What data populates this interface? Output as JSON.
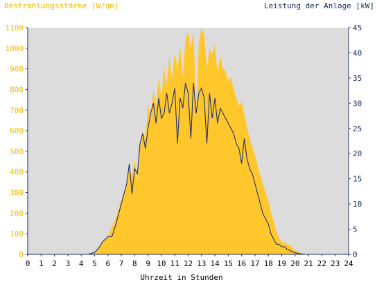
{
  "chart_data": {
    "type": "area",
    "left_title": "Bestrahlungsstärke [W/qm]",
    "right_title": "Leistung der Anlage [kW]",
    "xlabel": "Uhrzeit in Stunden",
    "x_ticks": [
      0,
      1,
      2,
      3,
      4,
      5,
      6,
      7,
      8,
      9,
      10,
      11,
      12,
      13,
      14,
      15,
      16,
      17,
      18,
      19,
      20,
      21,
      22,
      23,
      24
    ],
    "xlim": [
      0,
      24
    ],
    "y_left": {
      "ylim": [
        0,
        1100
      ],
      "ticks": [
        0,
        100,
        200,
        300,
        400,
        500,
        600,
        700,
        800,
        900,
        1000,
        1100
      ]
    },
    "y_right": {
      "ylim": [
        0,
        45
      ],
      "ticks": [
        0,
        5,
        10,
        15,
        20,
        25,
        30,
        35,
        40,
        45
      ]
    },
    "grid": false,
    "colors": {
      "irradiance": "#ffc72c",
      "power": "#1f2f6b",
      "plot_bg": "#dcdcdc",
      "left_axis_text": "#f5b800",
      "right_axis_text": "#1f2f6b",
      "axis_line": "#1f2f6b"
    },
    "series": [
      {
        "axis": "left",
        "x": [
          0,
          4.5,
          5,
          5.3,
          5.6,
          6,
          6.3,
          6.6,
          7,
          7.2,
          7.4,
          7.6,
          7.8,
          8,
          8.2,
          8.4,
          8.6,
          8.8,
          9,
          9.2,
          9.4,
          9.6,
          9.8,
          10,
          10.2,
          10.4,
          10.6,
          10.8,
          11,
          11.2,
          11.4,
          11.6,
          11.8,
          12,
          12.2,
          12.4,
          12.6,
          12.8,
          13,
          13.2,
          13.4,
          13.6,
          13.8,
          14,
          14.2,
          14.4,
          14.6,
          14.8,
          15,
          15.2,
          15.4,
          15.6,
          15.8,
          16,
          16.2,
          16.4,
          16.6,
          16.8,
          17,
          17.2,
          17.4,
          17.6,
          17.8,
          18,
          18.2,
          18.4,
          18.6,
          18.8,
          19,
          19.2,
          19.4,
          19.6,
          19.8,
          20,
          20.4,
          20.8,
          24
        ],
        "values": [
          0,
          0,
          10,
          30,
          60,
          90,
          130,
          180,
          260,
          300,
          340,
          420,
          380,
          460,
          350,
          520,
          600,
          560,
          730,
          650,
          800,
          720,
          860,
          760,
          900,
          820,
          960,
          850,
          980,
          900,
          1010,
          860,
          1040,
          1080,
          1000,
          1080,
          700,
          1020,
          1100,
          1060,
          900,
          1000,
          970,
          1020,
          880,
          960,
          900,
          890,
          840,
          860,
          800,
          760,
          720,
          740,
          680,
          620,
          560,
          520,
          480,
          430,
          380,
          340,
          300,
          260,
          200,
          160,
          110,
          80,
          60,
          55,
          50,
          45,
          30,
          20,
          8,
          0,
          0
        ]
      },
      {
        "axis": "right",
        "x": [
          0,
          4.5,
          5,
          5.3,
          5.6,
          6,
          6.3,
          6.6,
          7,
          7.2,
          7.4,
          7.6,
          7.8,
          8,
          8.2,
          8.4,
          8.6,
          8.8,
          9,
          9.2,
          9.4,
          9.6,
          9.8,
          10,
          10.2,
          10.4,
          10.6,
          10.8,
          11,
          11.2,
          11.4,
          11.6,
          11.8,
          12,
          12.2,
          12.4,
          12.6,
          12.8,
          13,
          13.2,
          13.4,
          13.6,
          13.8,
          14,
          14.2,
          14.4,
          14.6,
          14.8,
          15,
          15.2,
          15.4,
          15.6,
          15.8,
          16,
          16.2,
          16.4,
          16.6,
          16.8,
          17,
          17.2,
          17.4,
          17.6,
          17.8,
          18,
          18.2,
          18.4,
          18.6,
          18.8,
          19,
          19.2,
          19.4,
          19.6,
          19.8,
          20,
          20.4,
          20.8,
          24
        ],
        "values": [
          0,
          0,
          0.4,
          1.2,
          2.5,
          3.5,
          3.5,
          6,
          10,
          12,
          14,
          18,
          12,
          17,
          16,
          22,
          24,
          21,
          25,
          28,
          30,
          26,
          31,
          27,
          28,
          32,
          28,
          30,
          33,
          22,
          31,
          29,
          34,
          32,
          23,
          34,
          28,
          32,
          33,
          31,
          22,
          32,
          27,
          31,
          26,
          29,
          28,
          27,
          26,
          25,
          24,
          22,
          21,
          18,
          23,
          19,
          17,
          16,
          14,
          12,
          10,
          8,
          7,
          6,
          4,
          3,
          2,
          2,
          1.5,
          1.5,
          1,
          0.8,
          0.5,
          0.3,
          0.1,
          0,
          0
        ]
      }
    ]
  }
}
